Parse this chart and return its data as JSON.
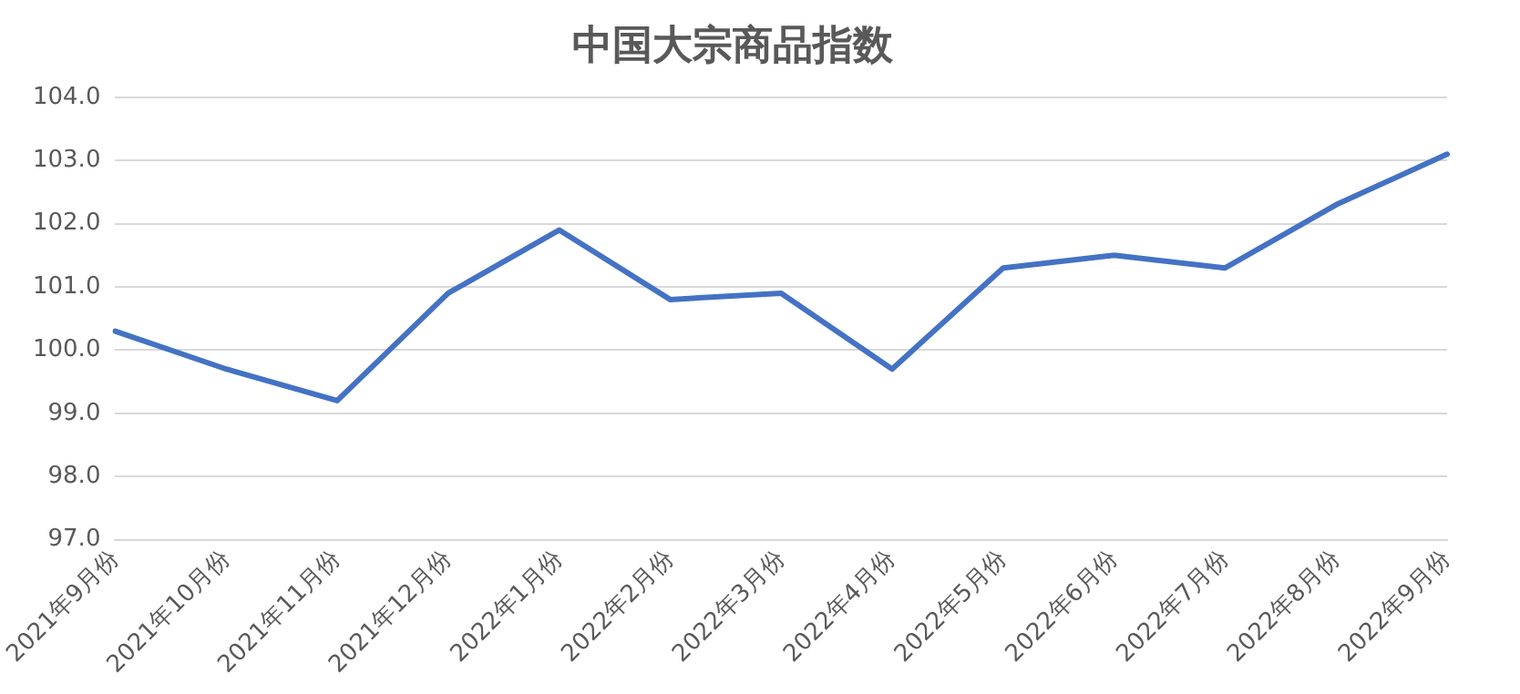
{
  "chart_data": {
    "type": "line",
    "title": "中国大宗商品指数",
    "categories": [
      "2021年9月份",
      "2021年10月份",
      "2021年11月份",
      "2021年12月份",
      "2022年1月份",
      "2022年2月份",
      "2022年3月份",
      "2022年4月份",
      "2022年5月份",
      "2022年6月份",
      "2022年7月份",
      "2022年8月份",
      "2022年9月份"
    ],
    "series": [
      {
        "color": "#4472c4",
        "values": [
          100.3,
          99.7,
          99.2,
          100.9,
          101.9,
          100.8,
          100.9,
          99.7,
          101.3,
          101.5,
          101.3,
          102.3,
          103.1
        ]
      }
    ],
    "ylim": [
      97,
      104
    ],
    "yticks": [
      {
        "value": 97,
        "label": "97.0"
      },
      {
        "value": 98,
        "label": "98.0"
      },
      {
        "value": 99,
        "label": "99.0"
      },
      {
        "value": 100,
        "label": "100.0"
      },
      {
        "value": 101,
        "label": "101.0"
      },
      {
        "value": 102,
        "label": "102.0"
      },
      {
        "value": 103,
        "label": "103.0"
      },
      {
        "value": 104,
        "label": "104.0"
      }
    ],
    "grid": "y",
    "legend": false,
    "marker": "none",
    "line_style": "solid"
  }
}
